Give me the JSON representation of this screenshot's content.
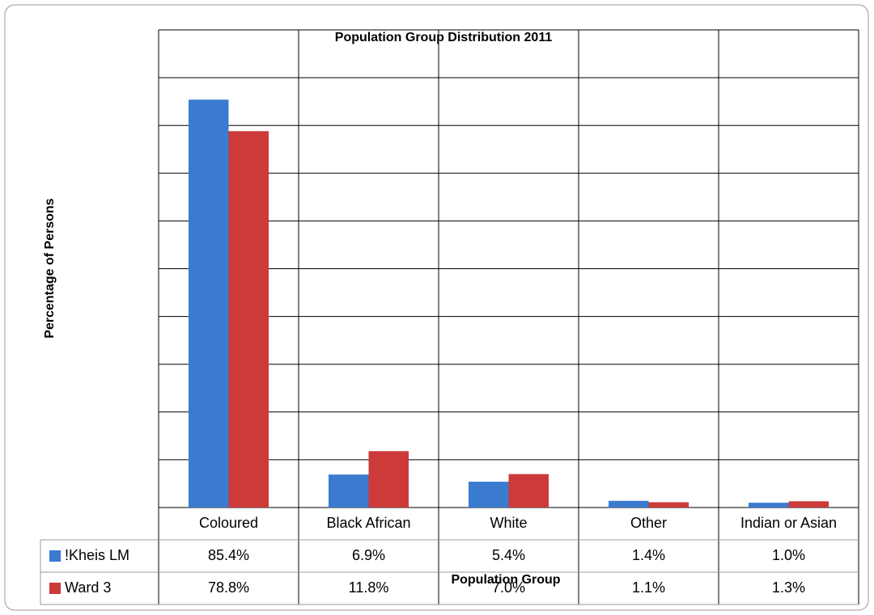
{
  "chart_data": {
    "type": "bar",
    "title": "Population Group Distribution 2011",
    "y_label": "Percentage of Persons",
    "x_label": "Population Group",
    "categories": [
      "Coloured",
      "Black African",
      "White",
      "Other",
      "Indian or Asian"
    ],
    "series": [
      {
        "name": "!Kheis LM",
        "color": "#3a7bd0",
        "values": [
          85.4,
          6.9,
          5.4,
          1.4,
          1.0
        ],
        "value_labels": [
          "85.4%",
          "6.9%",
          "5.4%",
          "1.4%",
          "1.0%"
        ]
      },
      {
        "name": "Ward 3",
        "color": "#cc3a3a",
        "values": [
          78.8,
          11.8,
          7.0,
          1.1,
          1.3
        ],
        "value_labels": [
          "78.8%",
          "11.8%",
          "7.0%",
          "1.1%",
          "1.3%"
        ]
      }
    ],
    "ylim": [
      0,
      100
    ],
    "yticks": [
      0,
      10,
      20,
      30,
      40,
      50,
      60,
      70,
      80,
      90,
      100
    ],
    "grid": true
  }
}
